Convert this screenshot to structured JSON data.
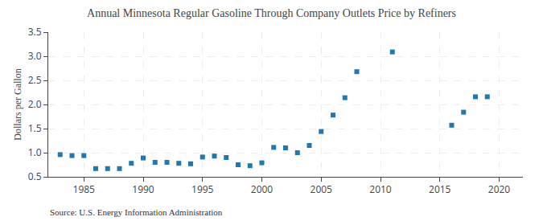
{
  "chart_data": {
    "type": "scatter",
    "title": "Annual Minnesota Regular Gasoline Through Company Outlets Price by Refiners",
    "y_label": "Dollars per Gallon",
    "annotations": [
      "Source: U.S. Energy Information Administration"
    ],
    "marker": "square",
    "x": [
      1983,
      1984,
      1985,
      1986,
      1987,
      1988,
      1989,
      1990,
      1991,
      1992,
      1993,
      1994,
      1995,
      1996,
      1997,
      1998,
      1999,
      2000,
      2001,
      2002,
      2003,
      2004,
      2005,
      2006,
      2007,
      2008,
      2011,
      2016,
      2017,
      2018,
      2019
    ],
    "values": [
      0.96,
      0.94,
      0.94,
      0.67,
      0.67,
      0.67,
      0.78,
      0.89,
      0.8,
      0.8,
      0.78,
      0.77,
      0.91,
      0.93,
      0.9,
      0.75,
      0.73,
      0.79,
      1.11,
      1.1,
      1.0,
      1.15,
      1.44,
      1.78,
      2.14,
      2.68,
      3.09,
      1.57,
      1.84,
      2.16,
      2.16
    ],
    "xlim": [
      1982,
      2022
    ],
    "xticks": [
      1985,
      1990,
      1995,
      2000,
      2005,
      2010,
      2015,
      2020
    ],
    "ylim": [
      0.5,
      3.5
    ],
    "yticks": [
      0.5,
      {
        "value": 1,
        "label": "1.0"
      },
      1.5,
      {
        "value": 2,
        "label": "2.0"
      },
      2.5,
      {
        "value": 3,
        "label": "3.0"
      },
      3.5
    ],
    "grid": true
  }
}
